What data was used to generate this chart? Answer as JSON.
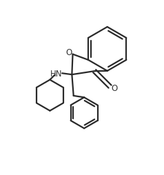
{
  "bg_color": "#ffffff",
  "line_color": "#2a2a2a",
  "line_width": 1.6,
  "figsize": [
    2.38,
    2.55
  ],
  "dpi": 100,
  "O_label": "O",
  "O2_label": "O",
  "HN_label": "HN"
}
